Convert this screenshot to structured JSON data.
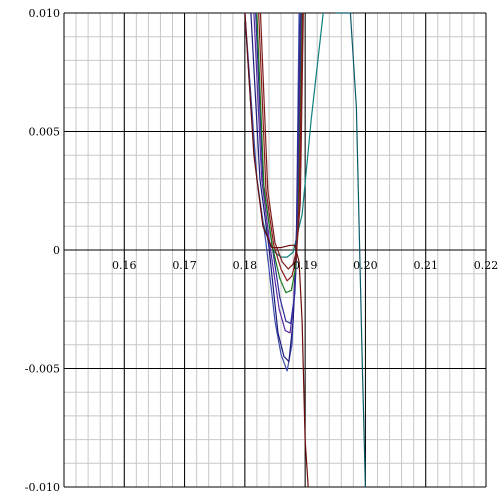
{
  "chart_data": {
    "type": "line",
    "title": "",
    "xlabel": "",
    "ylabel": "",
    "xlim": [
      0.15,
      0.22
    ],
    "ylim": [
      -0.01,
      0.01
    ],
    "grid": true,
    "x_ticks": [
      0.16,
      0.17,
      0.18,
      0.19,
      0.2,
      0.21,
      0.22
    ],
    "x_tick_labels": [
      "0.16",
      "0.17",
      "0.18",
      "0.19",
      "0.20",
      "0.21",
      "0.22"
    ],
    "y_ticks": [
      0.01,
      0.005,
      0,
      -0.005,
      -0.01
    ],
    "y_tick_labels": [
      "0.010",
      "0.005",
      "0",
      "-0.005",
      "-0.010"
    ],
    "colors": {
      "major_grid": "#000000",
      "minor_grid": "#c8c8c8",
      "background": "#ffffff"
    },
    "series": [
      {
        "color": "#0f7f7f",
        "x": [
          0.18,
          0.181,
          0.182,
          0.183,
          0.184,
          0.185,
          0.186,
          0.187,
          0.188,
          0.1895,
          0.191,
          0.193
        ],
        "y": [
          0.01,
          0.006,
          0.003,
          0.0012,
          0.0003,
          -0.0001,
          -0.0003,
          -0.0003,
          -0.0001,
          0.0015,
          0.0055,
          0.01
        ]
      },
      {
        "color": "#3a4aa8",
        "x": [
          0.18,
          0.182,
          0.1835,
          0.185,
          0.186,
          0.187,
          0.1878,
          0.1885,
          0.189
        ],
        "y": [
          0.01,
          0.003,
          0.0003,
          -0.003,
          -0.0044,
          -0.0051,
          -0.004,
          -0.0005,
          0.01
        ]
      },
      {
        "color": "#1a1a7a",
        "x": [
          0.181,
          0.1825,
          0.184,
          0.1855,
          0.1865,
          0.1873,
          0.188,
          0.1886,
          0.1892
        ],
        "y": [
          0.01,
          0.003,
          0.0001,
          -0.0035,
          -0.0045,
          -0.0047,
          -0.003,
          0.001,
          0.01
        ]
      },
      {
        "color": "#5a2aa0",
        "x": [
          0.1815,
          0.1828,
          0.1842,
          0.1857,
          0.1867,
          0.1875,
          0.1882,
          0.1887,
          0.1893
        ],
        "y": [
          0.01,
          0.003,
          0.0001,
          -0.0025,
          -0.0034,
          -0.0035,
          -0.002,
          0.001,
          0.01
        ]
      },
      {
        "color": "#2a2a9a",
        "x": [
          0.1818,
          0.183,
          0.1845,
          0.1858,
          0.1868,
          0.1876,
          0.1883,
          0.1888,
          0.1894
        ],
        "y": [
          0.01,
          0.003,
          0.0002,
          -0.002,
          -0.003,
          -0.0031,
          -0.0018,
          0.0012,
          0.01
        ]
      },
      {
        "color": "#1a7a1a",
        "x": [
          0.182,
          0.1832,
          0.1846,
          0.1858,
          0.1868,
          0.1877,
          0.1884,
          0.1889,
          0.1895
        ],
        "y": [
          0.01,
          0.0025,
          0.0001,
          -0.0012,
          -0.0018,
          -0.0017,
          -0.0008,
          0.0015,
          0.01
        ]
      },
      {
        "color": "#8a1a1a",
        "x": [
          0.1823,
          0.1835,
          0.1848,
          0.186,
          0.187,
          0.1878,
          0.1885,
          0.189,
          0.1896
        ],
        "y": [
          0.01,
          0.0025,
          0.0002,
          -0.0008,
          -0.0013,
          -0.0011,
          -0.0004,
          0.0018,
          0.01
        ]
      },
      {
        "color": "#7a1a1a",
        "x": [
          0.1826,
          0.1838,
          0.185,
          0.1862,
          0.1872,
          0.188,
          0.1886,
          0.1892,
          0.1897
        ],
        "y": [
          0.01,
          0.0025,
          0.0003,
          -0.0005,
          -0.0008,
          -0.0006,
          0.0,
          0.002,
          0.01
        ]
      },
      {
        "color": "#6a0a0a",
        "x": [
          0.18,
          0.1815,
          0.183,
          0.1845,
          0.186,
          0.1875,
          0.1883,
          0.189,
          0.1895,
          0.19,
          0.1905
        ],
        "y": [
          0.01,
          0.004,
          0.001,
          0.0001,
          0.0001,
          0.0002,
          0.0002,
          -0.0005,
          -0.003,
          -0.008,
          -0.01
        ]
      },
      {
        "color": "#0a5a6a",
        "x": [
          0.195,
          0.1965,
          0.1975,
          0.1985,
          0.1995,
          0.2
        ],
        "y": [
          0.01,
          0.01,
          0.01,
          0.006,
          -0.005,
          -0.01
        ]
      }
    ]
  }
}
